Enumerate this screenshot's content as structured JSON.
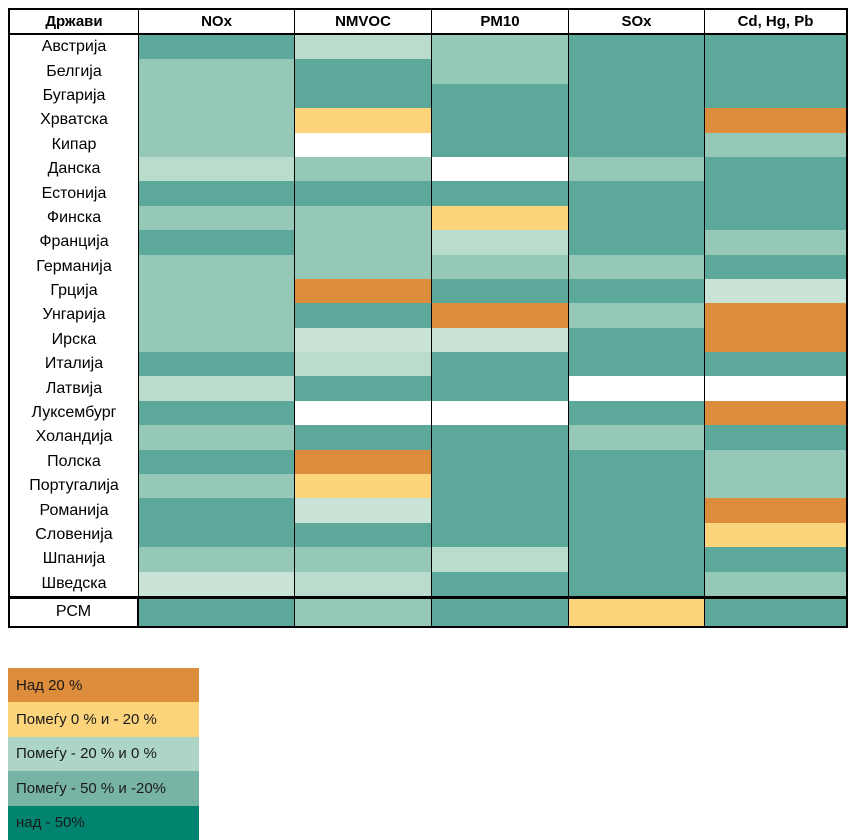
{
  "palette": {
    "t": "#5CA99B",
    "m": "#96C8B8",
    "p": "#B9DCCD",
    "pp": "#C9E4D7",
    "y": "#FBD47C",
    "o": "#DD8C3B",
    "w": "#FFFFFF"
  },
  "table": {
    "columns": [
      "Држави",
      "NOx",
      "NMVOC",
      "PM10",
      "SOx",
      "Cd, Hg, Pb"
    ],
    "rows": [
      {
        "country": "Австрија",
        "cells": [
          "t",
          "p",
          "m",
          "t",
          "t"
        ]
      },
      {
        "country": "Белгија",
        "cells": [
          "m",
          "t",
          "m",
          "t",
          "t"
        ]
      },
      {
        "country": "Бугарија",
        "cells": [
          "m",
          "t",
          "t",
          "t",
          "t"
        ]
      },
      {
        "country": "Хрватска",
        "cells": [
          "m",
          "y",
          "t",
          "t",
          "o"
        ]
      },
      {
        "country": "Кипар",
        "cells": [
          "m",
          "w",
          "t",
          "t",
          "m"
        ]
      },
      {
        "country": "Данска",
        "cells": [
          "p",
          "m",
          "w",
          "m",
          "t"
        ]
      },
      {
        "country": "Естонија",
        "cells": [
          "t",
          "t",
          "t",
          "t",
          "t"
        ]
      },
      {
        "country": "Финска",
        "cells": [
          "m",
          "m",
          "y",
          "t",
          "t"
        ]
      },
      {
        "country": "Франција",
        "cells": [
          "t",
          "m",
          "p",
          "t",
          "m"
        ]
      },
      {
        "country": "Германија",
        "cells": [
          "m",
          "m",
          "m",
          "m",
          "t"
        ]
      },
      {
        "country": "Грција",
        "cells": [
          "m",
          "o",
          "t",
          "t",
          "pp"
        ]
      },
      {
        "country": "Унгарија",
        "cells": [
          "m",
          "t",
          "o",
          "m",
          "o"
        ]
      },
      {
        "country": "Ирска",
        "cells": [
          "m",
          "pp",
          "pp",
          "t",
          "o"
        ]
      },
      {
        "country": "Италија",
        "cells": [
          "t",
          "p",
          "t",
          "t",
          "t"
        ]
      },
      {
        "country": "Латвија",
        "cells": [
          "p",
          "t",
          "t",
          "w",
          "w"
        ]
      },
      {
        "country": "Луксембург",
        "cells": [
          "t",
          "w",
          "w",
          "t",
          "o"
        ]
      },
      {
        "country": "Холандија",
        "cells": [
          "m",
          "t",
          "t",
          "m",
          "t"
        ]
      },
      {
        "country": "Полска",
        "cells": [
          "t",
          "o",
          "t",
          "t",
          "m"
        ]
      },
      {
        "country": "Португалија",
        "cells": [
          "m",
          "y",
          "t",
          "t",
          "m"
        ]
      },
      {
        "country": "Романија",
        "cells": [
          "t",
          "pp",
          "t",
          "t",
          "o"
        ]
      },
      {
        "country": "Словенија",
        "cells": [
          "t",
          "t",
          "t",
          "t",
          "y"
        ]
      },
      {
        "country": "Шпанија",
        "cells": [
          "m",
          "m",
          "p",
          "t",
          "t"
        ]
      },
      {
        "country": "Шведска",
        "cells": [
          "pp",
          "p",
          "t",
          "t",
          "m"
        ]
      }
    ],
    "footer_row": {
      "country": "РСМ",
      "cells": [
        "t",
        "m",
        "t",
        "y",
        "t"
      ]
    }
  },
  "legend": {
    "items": [
      {
        "label": "Над 20 %",
        "color": "#DD8C3B"
      },
      {
        "label": "Помеѓу  0 % и - 20 %",
        "color": "#FBD47C"
      },
      {
        "label": "Помеѓу - 20 % и 0 %",
        "color": "#ACD5C6"
      },
      {
        "label": "Помеѓу - 50 % и -20%",
        "color": "#78B4A5"
      },
      {
        "label": "над - 50%",
        "color": "#00846F"
      }
    ]
  },
  "chart_data": {
    "type": "heatmap",
    "title": "",
    "x_labels": [
      "NOx",
      "NMVOC",
      "PM10",
      "SOx",
      "Cd, Hg, Pb"
    ],
    "y_labels": [
      "Австрија",
      "Белгија",
      "Бугарија",
      "Хрватска",
      "Кипар",
      "Данска",
      "Естонија",
      "Финска",
      "Франција",
      "Германија",
      "Грција",
      "Унгарија",
      "Ирска",
      "Италија",
      "Латвија",
      "Луксембург",
      "Холандија",
      "Полска",
      "Португалија",
      "Романија",
      "Словенија",
      "Шпанија",
      "Шведска",
      "РСМ"
    ],
    "legend_position": "bottom-left",
    "categories_legend": {
      "o": "Над 20 %",
      "y": "Помеѓу 0 % и - 20 %",
      "pp": "Помеѓу - 20 % и 0 %",
      "p": "Помеѓу - 20 % и 0 %",
      "m": "Помеѓу - 50 % и -20%",
      "t": "над - 50%",
      "w": null
    },
    "cells": [
      [
        "t",
        "p",
        "m",
        "t",
        "t"
      ],
      [
        "m",
        "t",
        "m",
        "t",
        "t"
      ],
      [
        "m",
        "t",
        "t",
        "t",
        "t"
      ],
      [
        "m",
        "y",
        "t",
        "t",
        "o"
      ],
      [
        "m",
        "w",
        "t",
        "t",
        "m"
      ],
      [
        "p",
        "m",
        "w",
        "m",
        "t"
      ],
      [
        "t",
        "t",
        "t",
        "t",
        "t"
      ],
      [
        "m",
        "m",
        "y",
        "t",
        "t"
      ],
      [
        "t",
        "m",
        "p",
        "t",
        "m"
      ],
      [
        "m",
        "m",
        "m",
        "m",
        "t"
      ],
      [
        "m",
        "o",
        "t",
        "t",
        "pp"
      ],
      [
        "m",
        "t",
        "o",
        "m",
        "o"
      ],
      [
        "m",
        "pp",
        "pp",
        "t",
        "o"
      ],
      [
        "t",
        "p",
        "t",
        "t",
        "t"
      ],
      [
        "p",
        "t",
        "t",
        "w",
        "w"
      ],
      [
        "t",
        "w",
        "w",
        "t",
        "o"
      ],
      [
        "m",
        "t",
        "t",
        "m",
        "t"
      ],
      [
        "t",
        "o",
        "t",
        "t",
        "m"
      ],
      [
        "m",
        "y",
        "t",
        "t",
        "m"
      ],
      [
        "t",
        "pp",
        "t",
        "t",
        "o"
      ],
      [
        "t",
        "t",
        "t",
        "t",
        "y"
      ],
      [
        "m",
        "m",
        "p",
        "t",
        "t"
      ],
      [
        "pp",
        "p",
        "t",
        "t",
        "m"
      ],
      [
        "t",
        "m",
        "t",
        "y",
        "t"
      ]
    ]
  }
}
